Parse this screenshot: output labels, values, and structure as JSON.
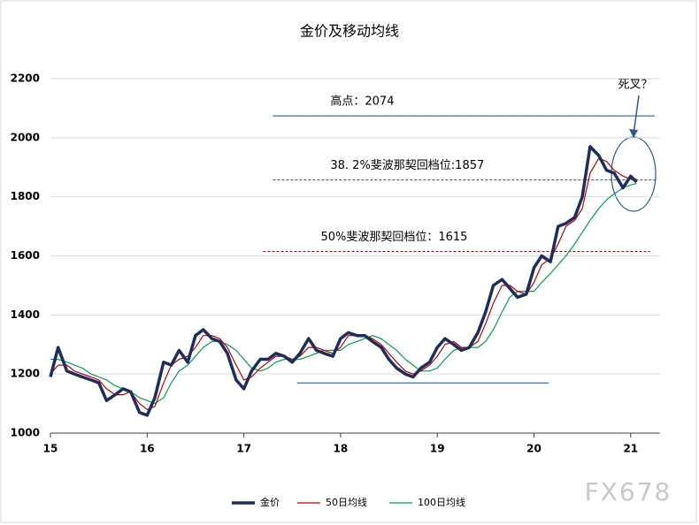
{
  "chart_data": {
    "type": "line",
    "title": "金价及移动均线",
    "x": [
      15,
      15.08,
      15.17,
      15.25,
      15.33,
      15.42,
      15.5,
      15.58,
      15.67,
      15.75,
      15.83,
      15.92,
      16,
      16.08,
      16.17,
      16.25,
      16.33,
      16.42,
      16.5,
      16.58,
      16.67,
      16.75,
      16.83,
      16.92,
      17,
      17.08,
      17.17,
      17.25,
      17.33,
      17.42,
      17.5,
      17.58,
      17.67,
      17.75,
      17.83,
      17.92,
      18,
      18.08,
      18.17,
      18.25,
      18.33,
      18.42,
      18.5,
      18.58,
      18.67,
      18.75,
      18.83,
      18.92,
      19,
      19.08,
      19.17,
      19.25,
      19.33,
      19.42,
      19.5,
      19.58,
      19.67,
      19.75,
      19.83,
      19.92,
      20,
      20.08,
      20.17,
      20.25,
      20.33,
      20.42,
      20.5,
      20.58,
      20.67,
      20.75,
      20.83,
      20.92,
      21,
      21.06
    ],
    "series": [
      {
        "name": "金价",
        "color": "#1f2d5c",
        "values": [
          1190,
          1290,
          1210,
          1200,
          1190,
          1180,
          1170,
          1110,
          1130,
          1150,
          1140,
          1070,
          1060,
          1120,
          1240,
          1230,
          1280,
          1240,
          1330,
          1350,
          1320,
          1310,
          1270,
          1180,
          1150,
          1210,
          1250,
          1250,
          1270,
          1260,
          1240,
          1270,
          1320,
          1280,
          1270,
          1260,
          1320,
          1340,
          1330,
          1330,
          1310,
          1290,
          1250,
          1220,
          1200,
          1190,
          1220,
          1240,
          1290,
          1320,
          1300,
          1280,
          1290,
          1340,
          1410,
          1500,
          1520,
          1490,
          1460,
          1470,
          1560,
          1600,
          1580,
          1700,
          1710,
          1730,
          1800,
          1970,
          1940,
          1890,
          1880,
          1830,
          1870,
          1850
        ]
      },
      {
        "name": "50日均线",
        "color": "#c00000",
        "values": [
          1200,
          1230,
          1230,
          1210,
          1200,
          1190,
          1180,
          1150,
          1130,
          1130,
          1140,
          1100,
          1080,
          1090,
          1170,
          1230,
          1250,
          1260,
          1290,
          1330,
          1330,
          1320,
          1290,
          1230,
          1180,
          1190,
          1220,
          1240,
          1260,
          1260,
          1250,
          1260,
          1290,
          1290,
          1280,
          1270,
          1290,
          1330,
          1330,
          1330,
          1320,
          1300,
          1270,
          1240,
          1210,
          1200,
          1210,
          1230,
          1260,
          1300,
          1310,
          1290,
          1290,
          1310,
          1370,
          1440,
          1500,
          1500,
          1480,
          1470,
          1510,
          1570,
          1590,
          1640,
          1700,
          1720,
          1760,
          1880,
          1930,
          1920,
          1890,
          1870,
          1860,
          1860
        ]
      },
      {
        "name": "100日均线",
        "color": "#00a050",
        "values": [
          1250,
          1250,
          1240,
          1230,
          1220,
          1200,
          1190,
          1180,
          1160,
          1150,
          1140,
          1120,
          1110,
          1100,
          1120,
          1170,
          1210,
          1230,
          1260,
          1290,
          1310,
          1310,
          1300,
          1280,
          1250,
          1220,
          1210,
          1220,
          1240,
          1250,
          1250,
          1250,
          1260,
          1270,
          1280,
          1280,
          1280,
          1300,
          1310,
          1320,
          1330,
          1320,
          1300,
          1280,
          1250,
          1230,
          1210,
          1210,
          1220,
          1250,
          1280,
          1290,
          1290,
          1290,
          1310,
          1350,
          1410,
          1460,
          1480,
          1480,
          1480,
          1510,
          1540,
          1570,
          1600,
          1640,
          1680,
          1720,
          1760,
          1790,
          1810,
          1830,
          1840,
          1845
        ]
      }
    ],
    "xlim": [
      15,
      21.3
    ],
    "xticks": [
      15,
      16,
      17,
      18,
      19,
      20,
      21
    ],
    "ylim": [
      1000,
      2200
    ],
    "yticks": [
      1000,
      1200,
      1400,
      1600,
      1800,
      2000,
      2200
    ],
    "grid": true,
    "annotations": [
      {
        "text": "高点：2074",
        "value": 2074,
        "x_range": [
          17.3,
          21.25
        ],
        "color": "#1f4e79",
        "dashed": false
      },
      {
        "text": "38. 2%斐波那契回档位:1857",
        "value": 1857,
        "x_range": [
          17.3,
          21.25
        ],
        "color": "#1f4e79",
        "dashed": true
      },
      {
        "text": "50%斐波那契回档位：1615",
        "value": 1615,
        "x_range": [
          17.2,
          21.2
        ],
        "color": "#c00000",
        "dashed": true
      },
      {
        "value": 1170,
        "x_range": [
          17.55,
          20.15
        ],
        "color": "#1f4e79",
        "dashed": false
      }
    ],
    "callout": "死叉？",
    "watermark": "FX678"
  }
}
